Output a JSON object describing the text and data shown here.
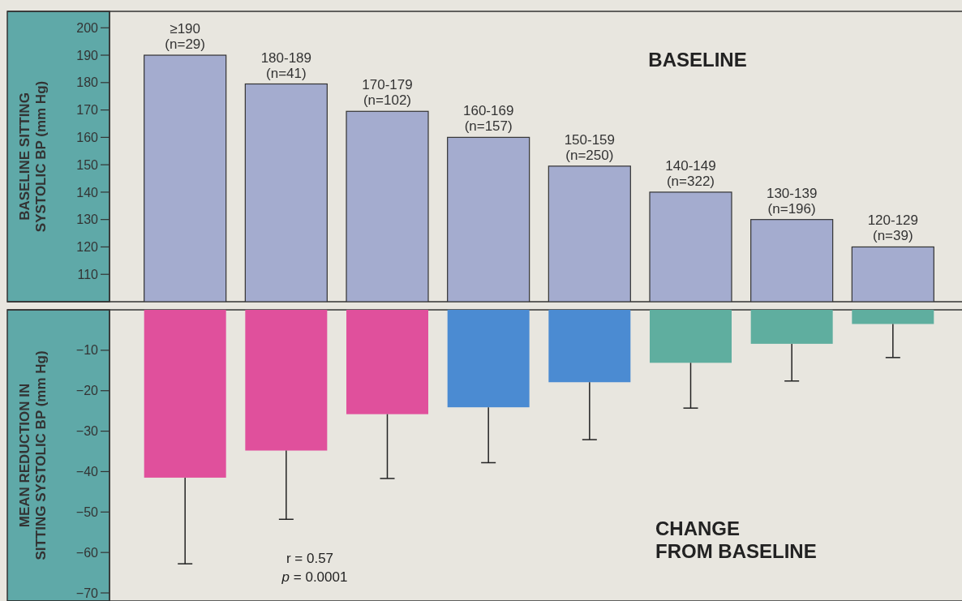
{
  "chart_data": [
    {
      "type": "bar",
      "ylabel": "BASELINE SITTING SYSTOLIC BP (mm Hg)",
      "categories": [
        "≥190 (n=29)",
        "180-189 (n=41)",
        "170-179 (n=102)",
        "160-169 (n=157)",
        "150-159 (n=250)",
        "140-149 (n=322)",
        "130-139 (n=196)",
        "120-129 (n=39)"
      ],
      "values": [
        190,
        179.5,
        169.5,
        160,
        149.5,
        140,
        130,
        120
      ],
      "color": "#a4accf",
      "ylim": [
        100,
        206
      ],
      "yticks": [
        110,
        120,
        130,
        140,
        150,
        160,
        170,
        180,
        190,
        200
      ],
      "annotations": [
        "BASELINE"
      ]
    },
    {
      "type": "bar",
      "ylabel": "MEAN REDUCTION IN SITTING SYSTOLIC BP (mm Hg)",
      "categories": [
        null,
        null,
        null,
        null,
        null,
        null,
        null,
        null
      ],
      "values": [
        -41.5,
        -34.8,
        -25.8,
        -24.1,
        -17.9,
        -13.1,
        -8.4,
        -3.5
      ],
      "colors": [
        "#e0509c",
        "#e0509c",
        "#e0509c",
        "#4b8bd2",
        "#4b8bd2",
        "#5fae9f",
        "#5fae9f",
        "#5fae9f"
      ],
      "errors": [
        [
          -62.8,
          -41.5
        ],
        [
          -51.8,
          -34.8
        ],
        [
          -41.7,
          -25.8
        ],
        [
          -37.8,
          -24.1
        ],
        [
          -32.1,
          -17.9
        ],
        [
          -24.3,
          -13.1
        ],
        [
          -17.6,
          -8.4
        ],
        [
          -11.8,
          -3.5
        ]
      ],
      "ylim": [
        -72,
        0
      ],
      "yticks": [
        -10,
        -20,
        -30,
        -40,
        -50,
        -60,
        -70
      ],
      "tick_labels": "y",
      "annotations": [
        "r = 0.57",
        "p = 0.0001",
        "CHANGE FROM BASELINE"
      ]
    }
  ]
}
